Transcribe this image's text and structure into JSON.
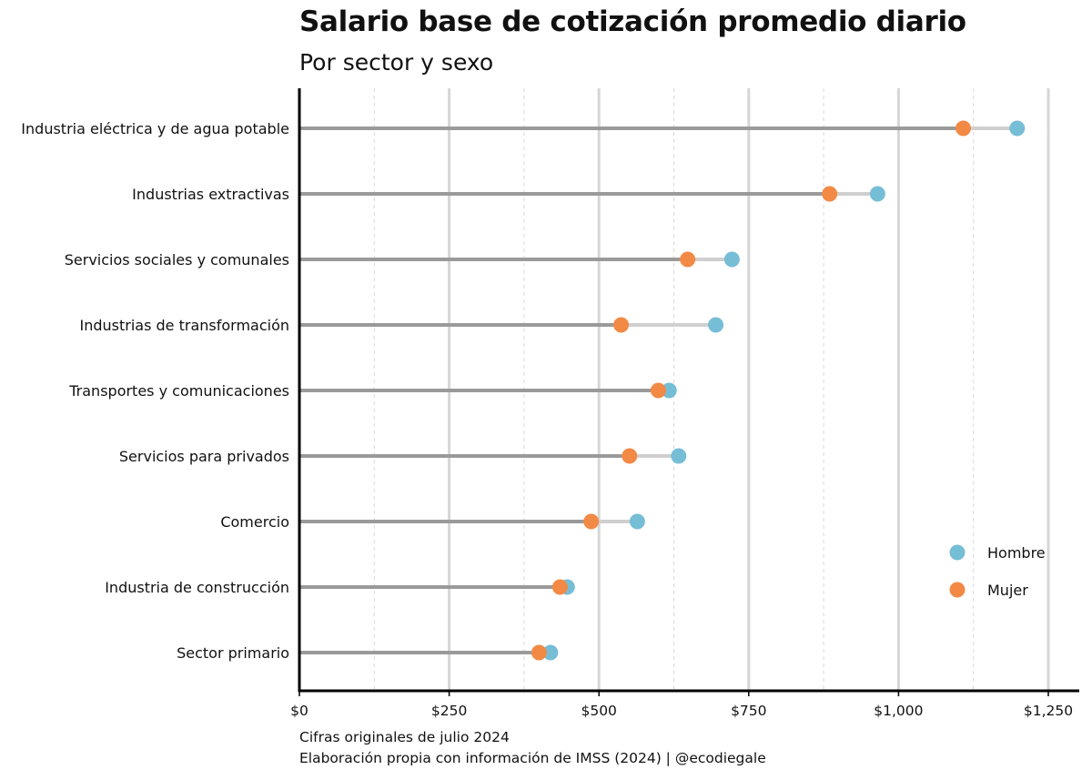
{
  "chart_data": {
    "type": "dumbbell",
    "title": "Salario base de cotización promedio diario",
    "subtitle": "Por sector y sexo",
    "categories": [
      "Industria eléctrica y de agua potable",
      "Industrias extractivas",
      "Servicios sociales y comunales",
      "Industrias de transformación",
      "Transportes y comunicaciones",
      "Servicios para privados",
      "Comercio",
      "Industria de construcción",
      "Sector primario"
    ],
    "series": [
      {
        "name": "Hombre",
        "color": "#76BDD6",
        "values": [
          1198,
          965,
          722,
          695,
          617,
          633,
          564,
          447,
          419
        ]
      },
      {
        "name": "Mujer",
        "color": "#F28A45",
        "values": [
          1108,
          885,
          648,
          537,
          599,
          551,
          487,
          435,
          400
        ]
      }
    ],
    "xlim": [
      0,
      1300
    ],
    "xticks": [
      0,
      250,
      500,
      750,
      1000,
      1250
    ],
    "xtick_labels": [
      "$0",
      "$250",
      "$500",
      "$750",
      "$1,000",
      "$1,250"
    ],
    "grid": true,
    "legend": "bottom-right",
    "caption": [
      "Cifras originales de julio 2024",
      "Elaboración propia con información de IMSS (2024) | @ecodiegale"
    ]
  }
}
